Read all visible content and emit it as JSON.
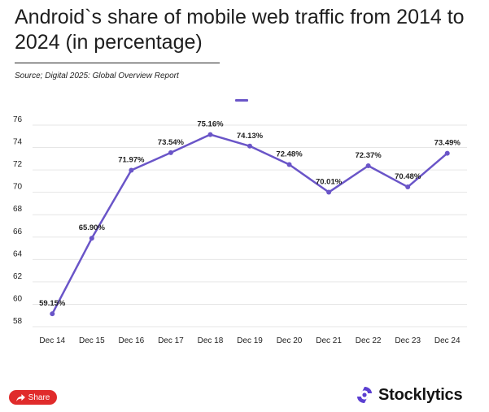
{
  "header": {
    "title": "Android`s share of mobile web traffic from 2014 to 2024 (in percentage)",
    "source": "Source; Digital 2025: Global Overview Report"
  },
  "colors": {
    "line": "#6a55c8",
    "share_button": "#e02b2b",
    "brand_logo": "#5b3fd1",
    "grid": "#e6e6e6"
  },
  "share": {
    "label": "Share",
    "icon": "share-arrow-icon"
  },
  "brand": {
    "name": "Stocklytics",
    "icon": "stocklytics-logo-icon"
  },
  "chart_data": {
    "type": "line",
    "categories": [
      "Dec 14",
      "Dec 15",
      "Dec 16",
      "Dec 17",
      "Dec 18",
      "Dec 19",
      "Dec 20",
      "Dec 21",
      "Dec 22",
      "Dec 23",
      "Dec 24"
    ],
    "series": [
      {
        "values": [
          59.15,
          65.9,
          71.97,
          73.54,
          75.16,
          74.13,
          72.48,
          70.01,
          72.37,
          70.48,
          73.49
        ],
        "labels": [
          "59.15%",
          "65.90%",
          "71.97%",
          "73.54%",
          "75.16%",
          "74.13%",
          "72.48%",
          "70.01%",
          "72.37%",
          "70.48%",
          "73.49%"
        ]
      }
    ],
    "y_ticks": [
      "58",
      "60",
      "62",
      "64",
      "66",
      "68",
      "70",
      "72",
      "74",
      "76"
    ],
    "ylim": [
      58,
      76
    ],
    "grid": true,
    "legend": "top-center"
  }
}
